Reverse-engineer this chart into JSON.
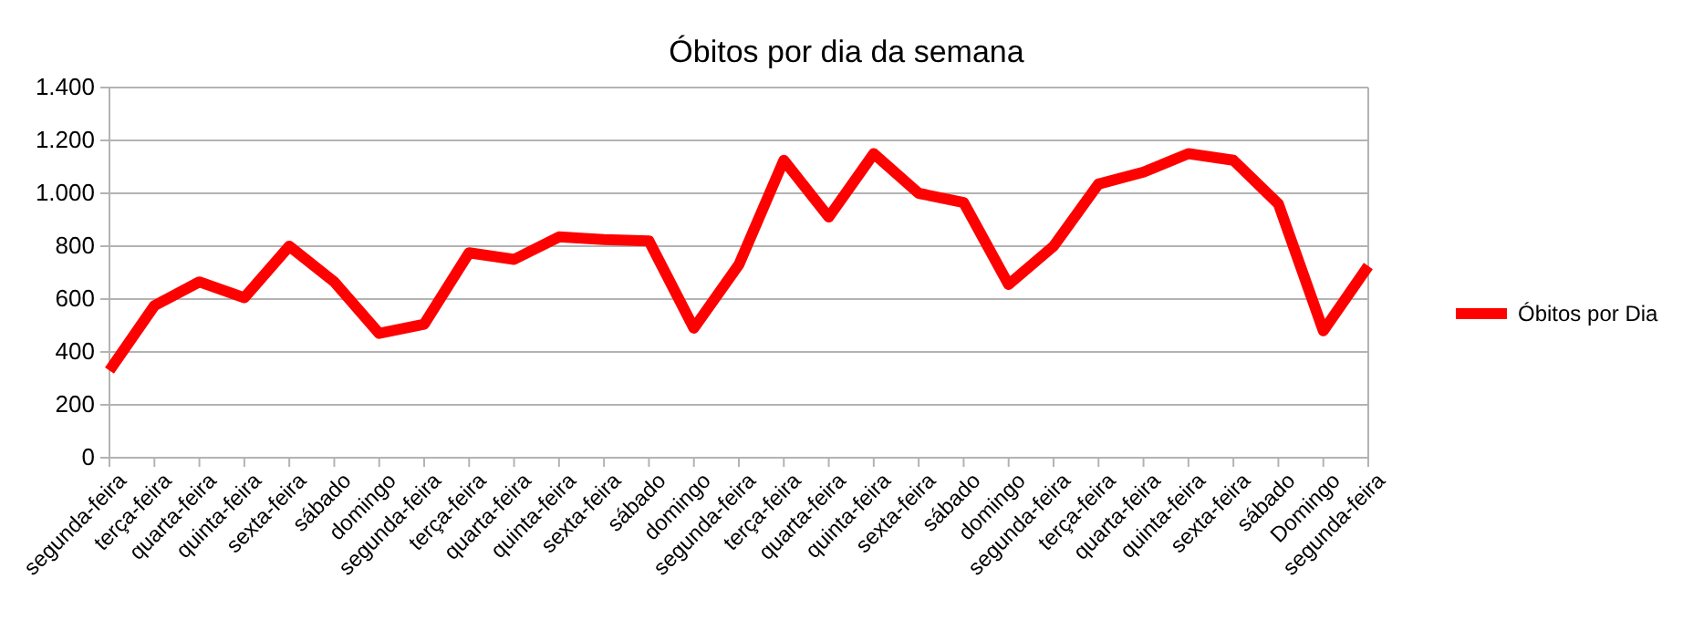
{
  "chart_data": {
    "type": "line",
    "title": "Óbitos por dia da semana",
    "categories": [
      "segunda-feira",
      "terça-feira",
      "quarta-feira",
      "quinta-feira",
      "sexta-feira",
      "sábado",
      "domingo",
      "segunda-feira",
      "terça-feira",
      "quarta-feira",
      "quinta-feira",
      "sexta-feira",
      "sábado",
      "domingo",
      "segunda-feira",
      "terça-feira",
      "quarta-feira",
      "quinta-feira",
      "sexta-feira",
      "sábado",
      "domingo",
      "segunda-feira",
      "terça-feira",
      "quarta-feira",
      "quinta-feira",
      "sexta-feira",
      "sábado",
      "Domingo",
      "segunda-feira"
    ],
    "series": [
      {
        "name": "Óbitos por Dia",
        "color": "#ff0000",
        "values": [
          330,
          575,
          665,
          605,
          800,
          665,
          470,
          505,
          775,
          750,
          835,
          825,
          820,
          490,
          730,
          1125,
          910,
          1150,
          1000,
          965,
          655,
          800,
          1035,
          1080,
          1150,
          1125,
          960,
          480,
          725
        ]
      }
    ],
    "ylim": [
      0,
      1400
    ],
    "yticks": [
      0,
      200,
      400,
      600,
      800,
      {
        "value": 1000,
        "label": "1.000"
      },
      {
        "value": 1200,
        "label": "1.200"
      },
      {
        "value": 1400,
        "label": "1.400"
      }
    ],
    "grid": "y",
    "legend": "right",
    "marker": "none",
    "line_style": "solid"
  }
}
